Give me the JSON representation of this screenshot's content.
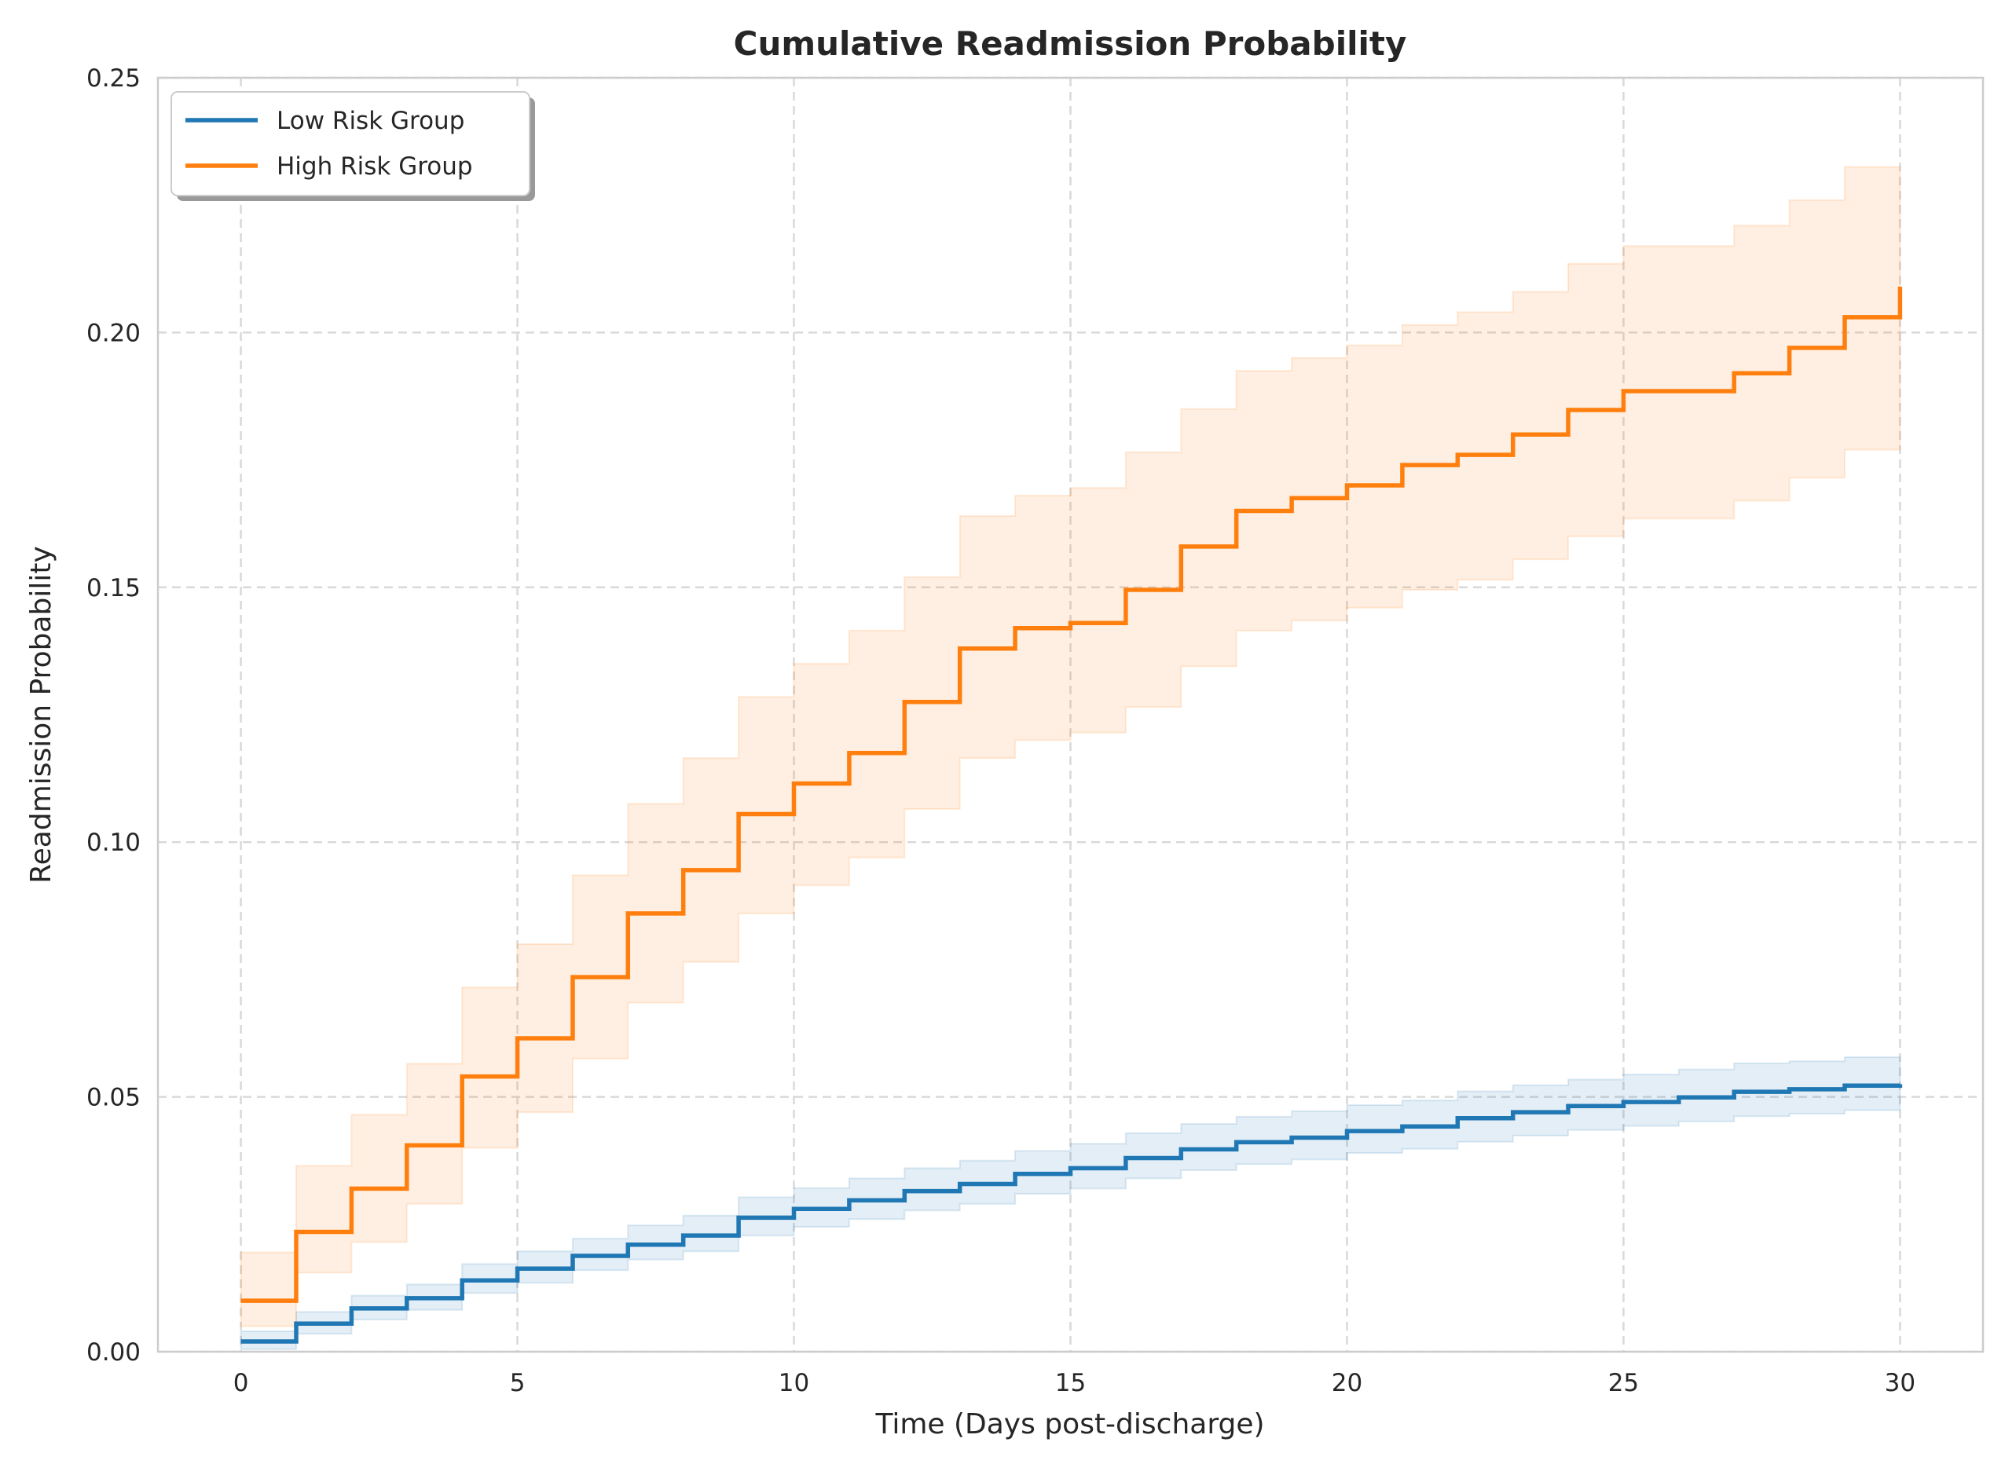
{
  "chart_data": {
    "type": "line",
    "title": "Cumulative Readmission Probability",
    "xlabel": "Time (Days post-discharge)",
    "ylabel": "Readmission Probability",
    "xlim": [
      -1.5,
      31.5
    ],
    "ylim": [
      0,
      0.25
    ],
    "xticks": [
      0,
      5,
      10,
      15,
      20,
      25,
      30
    ],
    "xtick_labels": [
      "0",
      "5",
      "10",
      "15",
      "20",
      "25",
      "30"
    ],
    "yticks": [
      0.0,
      0.05,
      0.1,
      0.15,
      0.2,
      0.25
    ],
    "ytick_labels": [
      "0.00",
      "0.05",
      "0.10",
      "0.15",
      "0.20",
      "0.25"
    ],
    "grid": true,
    "legend_position": "top-left",
    "step": true,
    "x": [
      0,
      1,
      2,
      3,
      4,
      5,
      6,
      7,
      8,
      9,
      10,
      11,
      12,
      13,
      14,
      15,
      16,
      17,
      18,
      19,
      20,
      21,
      22,
      23,
      24,
      25,
      26,
      27,
      28,
      29,
      30
    ],
    "series": [
      {
        "name": "Low Risk Group",
        "color": "#1f77b4",
        "values": [
          0.002,
          0.0055,
          0.0085,
          0.0105,
          0.014,
          0.0163,
          0.0188,
          0.021,
          0.0228,
          0.0263,
          0.028,
          0.0297,
          0.0315,
          0.0329,
          0.0349,
          0.036,
          0.038,
          0.0397,
          0.0411,
          0.042,
          0.0433,
          0.0442,
          0.0458,
          0.047,
          0.0482,
          0.049,
          0.0499,
          0.051,
          0.0515,
          0.0522,
          0.0525
        ],
        "ci_low": [
          0.0005,
          0.0035,
          0.0063,
          0.0082,
          0.0115,
          0.0135,
          0.016,
          0.0181,
          0.0197,
          0.0228,
          0.0245,
          0.026,
          0.0277,
          0.029,
          0.031,
          0.032,
          0.034,
          0.0356,
          0.0368,
          0.0377,
          0.039,
          0.0398,
          0.0412,
          0.0424,
          0.0435,
          0.0443,
          0.0452,
          0.0462,
          0.0467,
          0.0474,
          0.0474
        ],
        "ci_high": [
          0.004,
          0.0078,
          0.011,
          0.0132,
          0.0172,
          0.0197,
          0.0222,
          0.0248,
          0.0267,
          0.0303,
          0.0321,
          0.034,
          0.036,
          0.0375,
          0.0394,
          0.0408,
          0.0429,
          0.0447,
          0.0461,
          0.0472,
          0.0484,
          0.0493,
          0.0511,
          0.0523,
          0.0534,
          0.0544,
          0.0554,
          0.0566,
          0.057,
          0.0578,
          0.0578
        ]
      },
      {
        "name": "High Risk Group",
        "color": "#ff7f0e",
        "values": [
          0.01,
          0.0235,
          0.032,
          0.0405,
          0.054,
          0.0615,
          0.0735,
          0.086,
          0.0945,
          0.1055,
          0.1115,
          0.1175,
          0.1275,
          0.138,
          0.142,
          0.143,
          0.1495,
          0.158,
          0.165,
          0.1675,
          0.17,
          0.174,
          0.176,
          0.18,
          0.1848,
          0.1885,
          0.1885,
          0.192,
          0.197,
          0.203,
          0.209
        ],
        "ci_low": [
          0.005,
          0.0155,
          0.0215,
          0.029,
          0.04,
          0.047,
          0.0575,
          0.0685,
          0.0765,
          0.086,
          0.0915,
          0.097,
          0.1065,
          0.1165,
          0.12,
          0.1215,
          0.1265,
          0.1345,
          0.1415,
          0.1435,
          0.146,
          0.1495,
          0.1515,
          0.1555,
          0.16,
          0.1635,
          0.1635,
          0.167,
          0.1715,
          0.177,
          0.177
        ],
        "ci_high": [
          0.0195,
          0.0365,
          0.0465,
          0.0565,
          0.0715,
          0.08,
          0.0935,
          0.1075,
          0.1165,
          0.1285,
          0.135,
          0.1415,
          0.152,
          0.164,
          0.168,
          0.1695,
          0.1765,
          0.185,
          0.1925,
          0.195,
          0.1975,
          0.2015,
          0.204,
          0.208,
          0.2135,
          0.217,
          0.217,
          0.221,
          0.226,
          0.2325,
          0.2325
        ]
      }
    ]
  }
}
